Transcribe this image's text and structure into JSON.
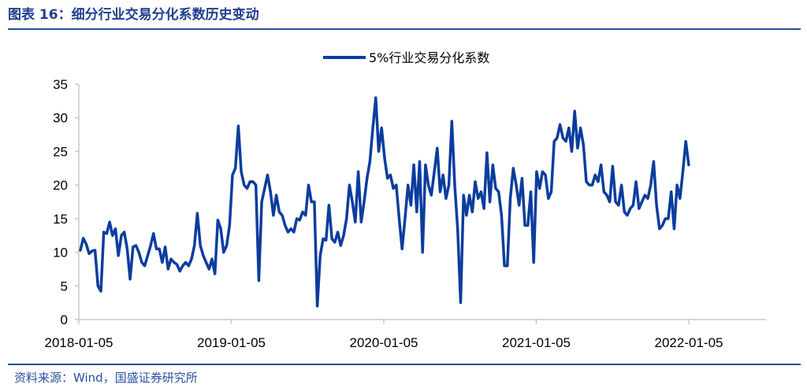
{
  "figure": {
    "title": "图表 16：细分行业交易分化系数历史变动",
    "source": "资料来源：Wind，国盛证券研究所"
  },
  "colors": {
    "line": "#0b3d9e",
    "axis": "#c8c8c8",
    "frame": "#1f4e9e"
  },
  "chart_data": {
    "type": "line",
    "title": "",
    "xlabel": "",
    "ylabel": "",
    "ylim": [
      0,
      35
    ],
    "yticks": [
      "0",
      "5",
      "10",
      "15",
      "20",
      "25",
      "30",
      "35"
    ],
    "xticks": [
      "2018-01-05",
      "2019-01-05",
      "2020-01-05",
      "2021-01-05",
      "2022-01-05"
    ],
    "legend_position": "top-center",
    "grid": false,
    "series": [
      {
        "name": "5%行业交易分化系数",
        "x_start": "2018-01-05",
        "x_step": "weekly",
        "values": [
          10.3,
          12.1,
          11.2,
          9.8,
          10.2,
          10.3,
          5.0,
          4.2,
          13.0,
          12.8,
          14.5,
          12.5,
          13.5,
          9.5,
          12.5,
          13.0,
          10.5,
          6.0,
          10.8,
          11.0,
          10.0,
          8.5,
          8.0,
          9.5,
          11.0,
          12.8,
          10.5,
          10.5,
          8.5,
          10.8,
          7.5,
          9.0,
          8.5,
          8.2,
          7.2,
          8.0,
          8.5,
          8.0,
          9.0,
          11.0,
          15.8,
          11.0,
          9.5,
          8.5,
          7.5,
          9.0,
          6.8,
          14.8,
          13.5,
          10.0,
          11.0,
          14.0,
          21.5,
          22.5,
          28.8,
          22.0,
          20.0,
          19.5,
          20.5,
          20.5,
          20.0,
          5.8,
          17.5,
          19.5,
          21.5,
          19.0,
          15.5,
          18.5,
          16.0,
          15.5,
          14.0,
          13.0,
          13.5,
          13.0,
          15.0,
          14.8,
          16.0,
          15.5,
          20.0,
          17.5,
          17.5,
          2.0,
          9.5,
          12.0,
          11.8,
          17.0,
          12.0,
          11.5,
          13.0,
          11.0,
          12.5,
          15.0,
          20.0,
          17.5,
          14.5,
          22.0,
          14.5,
          17.5,
          21.0,
          23.5,
          28.5,
          33.0,
          25.0,
          28.5,
          24.0,
          21.0,
          21.5,
          19.5,
          20.0,
          15.0,
          10.5,
          15.0,
          20.0,
          17.0,
          23.0,
          16.0,
          23.5,
          10.0,
          23.0,
          20.0,
          18.5,
          22.0,
          25.5,
          19.0,
          21.5,
          18.0,
          20.0,
          29.5,
          20.0,
          13.5,
          2.5,
          18.5,
          15.5,
          18.5,
          16.0,
          20.5,
          18.0,
          19.0,
          16.5,
          24.8,
          17.5,
          23.0,
          19.5,
          19.0,
          15.5,
          8.0,
          8.0,
          18.0,
          22.5,
          20.0,
          17.0,
          21.0,
          14.0,
          14.0,
          19.0,
          8.5,
          22.0,
          19.5,
          22.0,
          21.5,
          18.0,
          19.0,
          26.5,
          27.0,
          29.0,
          27.0,
          26.5,
          28.5,
          25.0,
          31.0,
          25.5,
          28.5,
          26.0,
          20.5,
          20.0,
          20.0,
          21.5,
          20.5,
          23.0,
          19.0,
          18.5,
          17.5,
          22.8,
          17.5,
          17.0,
          20.0,
          16.0,
          15.5,
          16.5,
          17.0,
          20.5,
          16.5,
          17.5,
          18.5,
          18.0,
          20.0,
          23.5,
          17.0,
          13.5,
          14.0,
          15.0,
          15.0,
          19.0,
          13.5,
          20.0,
          18.0,
          22.0,
          26.5,
          23.0
        ]
      }
    ]
  }
}
